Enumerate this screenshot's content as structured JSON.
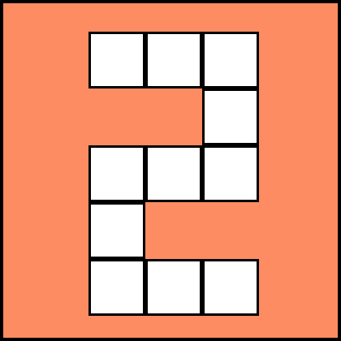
{
  "tile": {
    "background_color": "#FD8C62",
    "cell_color": "#FFFFFF",
    "border_color": "#000000"
  },
  "glyph": {
    "columns": 3,
    "rows": 5,
    "pattern": [
      [
        1,
        1,
        1
      ],
      [
        0,
        0,
        1
      ],
      [
        1,
        1,
        1
      ],
      [
        1,
        0,
        0
      ],
      [
        1,
        1,
        1
      ]
    ]
  }
}
